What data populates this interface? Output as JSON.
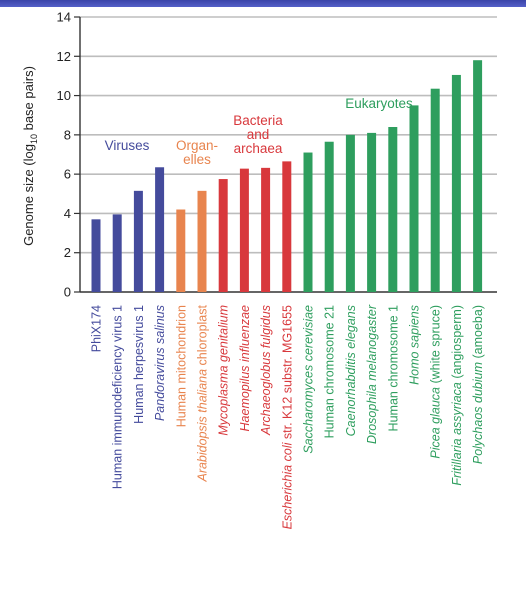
{
  "chart_data": {
    "type": "bar",
    "ylabel": {
      "prefix": "Genome size (log",
      "sub": "10",
      "suffix": " base pairs)"
    },
    "ylim": [
      0,
      14
    ],
    "yticks": [
      0,
      2,
      4,
      6,
      8,
      10,
      12,
      14
    ],
    "grid": true,
    "colors": {
      "Viruses": "#444b9c",
      "Organelles": "#e8844e",
      "Bacteria and archaea": "#d8383c",
      "Eukaryotes": "#2e9e5e"
    },
    "groups": [
      {
        "key": "Viruses",
        "lines": [
          "Viruses"
        ],
        "first": 0,
        "last": 3
      },
      {
        "key": "Organelles",
        "lines": [
          "Organ-",
          "elles"
        ],
        "first": 4,
        "last": 5
      },
      {
        "key": "Bacteria and archaea",
        "lines": [
          "Bacteria",
          "and",
          "archaea"
        ],
        "first": 6,
        "last": 9
      },
      {
        "key": "Eukaryotes",
        "lines": [
          "Eukaryotes"
        ],
        "first": 10,
        "last": 18
      }
    ],
    "bars": [
      {
        "parts": [
          {
            "t": "PhiX174",
            "i": false
          }
        ],
        "value": 3.7,
        "group": "Viruses"
      },
      {
        "parts": [
          {
            "t": "Human immunodeficiency virus 1",
            "i": false
          }
        ],
        "value": 3.95,
        "group": "Viruses"
      },
      {
        "parts": [
          {
            "t": "Human herpesvirus 1",
            "i": false
          }
        ],
        "value": 5.15,
        "group": "Viruses"
      },
      {
        "parts": [
          {
            "t": "Pandoravirus salinus",
            "i": true
          }
        ],
        "value": 6.35,
        "group": "Viruses"
      },
      {
        "parts": [
          {
            "t": "Human mitochondrion",
            "i": false
          }
        ],
        "value": 4.2,
        "group": "Organelles"
      },
      {
        "parts": [
          {
            "t": "Arabidopsis thaliana",
            "i": true
          },
          {
            "t": " chloroplast",
            "i": false
          }
        ],
        "value": 5.15,
        "group": "Organelles"
      },
      {
        "parts": [
          {
            "t": "Mycoplasma genitalium",
            "i": true
          }
        ],
        "value": 5.75,
        "group": "Bacteria and archaea"
      },
      {
        "parts": [
          {
            "t": "Haemopilus influenzae",
            "i": true
          }
        ],
        "value": 6.28,
        "group": "Bacteria and archaea"
      },
      {
        "parts": [
          {
            "t": "Archaeoglobus fulgidus",
            "i": true
          }
        ],
        "value": 6.32,
        "group": "Bacteria and archaea"
      },
      {
        "parts": [
          {
            "t": "Escherichia coli",
            "i": true
          },
          {
            "t": " str. K12 substr. MG1655",
            "i": false
          }
        ],
        "value": 6.65,
        "group": "Bacteria and archaea"
      },
      {
        "parts": [
          {
            "t": "Saccharomyces cerevisiae",
            "i": true
          }
        ],
        "value": 7.1,
        "group": "Eukaryotes"
      },
      {
        "parts": [
          {
            "t": "Human chromosome 21",
            "i": false
          }
        ],
        "value": 7.65,
        "group": "Eukaryotes"
      },
      {
        "parts": [
          {
            "t": "Caenorhabditis elegans",
            "i": true
          }
        ],
        "value": 8.0,
        "group": "Eukaryotes"
      },
      {
        "parts": [
          {
            "t": "Drosophila melanogaster",
            "i": true
          }
        ],
        "value": 8.1,
        "group": "Eukaryotes"
      },
      {
        "parts": [
          {
            "t": "Human chromosome 1",
            "i": false
          }
        ],
        "value": 8.4,
        "group": "Eukaryotes"
      },
      {
        "parts": [
          {
            "t": "Homo sapiens",
            "i": true
          }
        ],
        "value": 9.5,
        "group": "Eukaryotes"
      },
      {
        "parts": [
          {
            "t": "Picea glauca",
            "i": true
          },
          {
            "t": " (white spruce)",
            "i": false
          }
        ],
        "value": 10.35,
        "group": "Eukaryotes"
      },
      {
        "parts": [
          {
            "t": "Fritillaria assyriaca",
            "i": true
          },
          {
            "t": " (angiosperm)",
            "i": false
          }
        ],
        "value": 11.05,
        "group": "Eukaryotes"
      },
      {
        "parts": [
          {
            "t": "Polychaos dubium",
            "i": true
          },
          {
            "t": " (amoeba)",
            "i": false
          }
        ],
        "value": 11.8,
        "group": "Eukaryotes"
      }
    ]
  }
}
